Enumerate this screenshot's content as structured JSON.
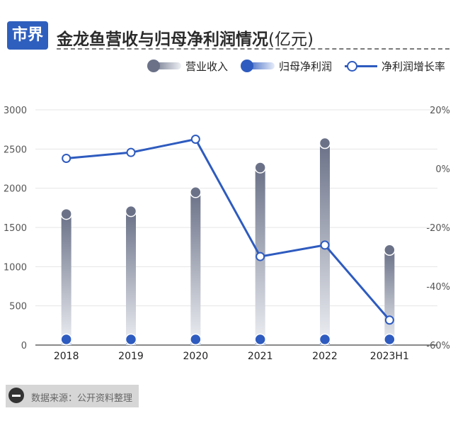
{
  "header": {
    "logo_text": "市界",
    "title": "金龙鱼营收与归母净利润情况",
    "title_unit": "(亿元)"
  },
  "legend": {
    "revenue": "营业收入",
    "net_profit": "归母净利润",
    "growth": "净利润增长率"
  },
  "source": {
    "text": "数据来源：公开资料整理",
    "icon": "minus-circle-icon"
  },
  "colors": {
    "revenue": "#6b7288",
    "net_profit": "#2e5bbf",
    "growth_line": "#2e5bbf",
    "logo_bg": "#2f5fbe"
  },
  "chart_data": {
    "type": "bar",
    "categories": [
      "2018",
      "2019",
      "2020",
      "2021",
      "2022",
      "2023H1"
    ],
    "series": [
      {
        "name": "营业收入",
        "axis": "left",
        "type": "bar",
        "values": [
          1671,
          1707,
          1949,
          2263,
          2575,
          1213
        ]
      },
      {
        "name": "归母净利润",
        "axis": "left",
        "type": "bar",
        "values": [
          66,
          54,
          60,
          41,
          30,
          12
        ]
      },
      {
        "name": "净利润增长率",
        "axis": "right",
        "type": "line",
        "values": [
          3.5,
          5.5,
          10.0,
          -29.9,
          -26.0,
          -51.5
        ]
      }
    ],
    "left_axis": {
      "ticks": [
        "0",
        "500",
        "1000",
        "1500",
        "2000",
        "2500",
        "3000"
      ],
      "range": [
        0,
        3000
      ]
    },
    "right_axis": {
      "ticks": [
        "-60%",
        "-40%",
        "-20%",
        "0%",
        "20%"
      ],
      "range": [
        -60,
        20
      ]
    },
    "grid": true,
    "legend_position": "top-right"
  }
}
